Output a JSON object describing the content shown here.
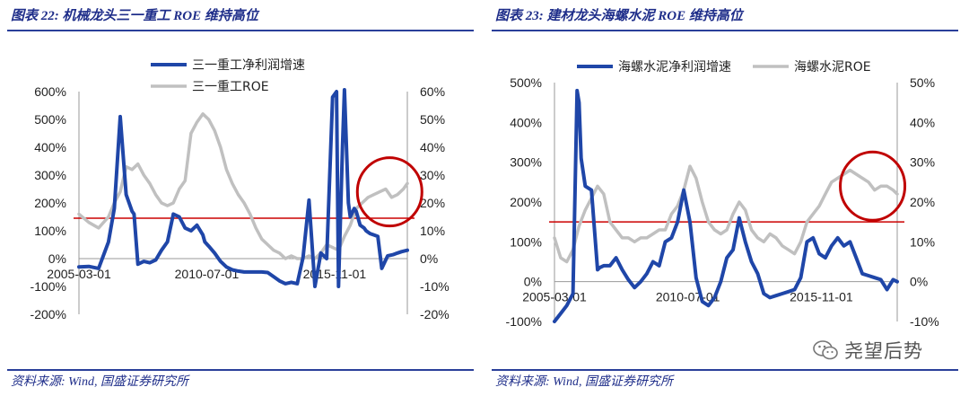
{
  "watermark": {
    "text": "尧望后势"
  },
  "chart_data": [
    {
      "caption": "图表 22: 机械龙头三一重工 ROE 维持高位",
      "source": "资料来源: Wind, 国盛证券研究所",
      "type": "line",
      "x_tick_labels": [
        "2005-03-01",
        "2010-07-01",
        "2015-11-01"
      ],
      "x_tick_positions": [
        0,
        65,
        130
      ],
      "x_range": [
        0,
        167
      ],
      "y_left": {
        "range": [
          -200,
          600
        ],
        "ticks": [
          -200,
          -100,
          0,
          100,
          200,
          300,
          400,
          500,
          600
        ],
        "labels": [
          "-200%",
          "-100%",
          "0%",
          "100%",
          "200%",
          "300%",
          "400%",
          "500%",
          "600%"
        ]
      },
      "y_right": {
        "range": [
          -20,
          60
        ],
        "ticks": [
          -20,
          -10,
          0,
          10,
          20,
          30,
          40,
          50,
          60
        ],
        "labels": [
          "-20%",
          "-10%",
          "0%",
          "10%",
          "20%",
          "30%",
          "40%",
          "50%",
          "60%"
        ]
      },
      "reference_line": {
        "axis": "left",
        "value": 145,
        "color": "#cc0000"
      },
      "highlight_circle": {
        "x": 158,
        "y_left": 240,
        "color": "#c00000"
      },
      "series": [
        {
          "name": "三一重工净利润增速",
          "axis": "left",
          "color": "#1f46a8",
          "x": [
            0,
            5,
            10,
            15,
            18,
            21,
            24,
            27,
            28,
            30,
            33,
            36,
            39,
            42,
            45,
            48,
            51,
            54,
            57,
            60,
            63,
            64,
            66,
            69,
            72,
            75,
            78,
            81,
            84,
            87,
            90,
            93,
            96,
            99,
            102,
            105,
            108,
            111,
            114,
            117,
            120,
            123,
            126,
            129,
            131,
            132,
            134,
            135,
            137,
            138,
            140,
            141,
            143,
            145,
            146,
            148,
            150,
            152,
            154,
            157,
            160,
            162,
            164,
            167
          ],
          "y": [
            -30,
            -28,
            -35,
            60,
            180,
            510,
            230,
            170,
            160,
            -20,
            -10,
            -15,
            -5,
            30,
            60,
            160,
            150,
            110,
            100,
            120,
            85,
            60,
            45,
            20,
            -10,
            -30,
            -40,
            -45,
            -48,
            -48,
            -48,
            -48,
            -50,
            -65,
            -80,
            -90,
            -85,
            -90,
            5,
            210,
            -100,
            20,
            0,
            580,
            600,
            -100,
            400,
            650,
            200,
            150,
            180,
            170,
            120,
            110,
            100,
            90,
            85,
            80,
            -35,
            10,
            15,
            20,
            25,
            30
          ]
        },
        {
          "name": "三一重工ROE",
          "axis": "right",
          "color": "#c0c0c0",
          "x": [
            0,
            5,
            10,
            15,
            18,
            21,
            24,
            27,
            30,
            33,
            36,
            39,
            42,
            45,
            48,
            51,
            54,
            57,
            60,
            63,
            66,
            69,
            72,
            75,
            78,
            81,
            84,
            87,
            90,
            93,
            96,
            99,
            102,
            105,
            108,
            111,
            114,
            117,
            120,
            123,
            126,
            129,
            132,
            135,
            138,
            141,
            144,
            147,
            150,
            153,
            156,
            159,
            162,
            165,
            167
          ],
          "y": [
            16,
            13,
            11,
            15,
            20,
            24,
            33,
            32,
            34,
            30,
            27,
            23,
            20,
            19,
            20,
            25,
            28,
            45,
            49,
            52,
            50,
            46,
            40,
            32,
            27,
            23,
            20,
            16,
            11,
            7,
            5,
            3,
            2,
            0,
            1,
            0,
            0,
            1,
            0,
            2,
            5,
            4,
            3,
            8,
            12,
            18,
            20,
            22,
            23,
            24,
            25,
            22,
            23,
            25,
            27
          ]
        }
      ]
    },
    {
      "caption": "图表 23: 建材龙头海螺水泥 ROE 维持高位",
      "source": "资料来源: Wind, 国盛证券研究所",
      "type": "line",
      "x_tick_labels": [
        "2005-03-01",
        "2010-07-01",
        "2015-11-01"
      ],
      "x_tick_positions": [
        0,
        65,
        130
      ],
      "x_range": [
        0,
        167
      ],
      "y_left": {
        "range": [
          -100,
          500
        ],
        "ticks": [
          -100,
          0,
          100,
          200,
          300,
          400,
          500
        ],
        "labels": [
          "-100%",
          "0%",
          "100%",
          "200%",
          "300%",
          "400%",
          "500%"
        ]
      },
      "y_right": {
        "range": [
          -10,
          50
        ],
        "ticks": [
          -10,
          0,
          10,
          20,
          30,
          40,
          50
        ],
        "labels": [
          "-10%",
          "0%",
          "10%",
          "20%",
          "30%",
          "40%",
          "50%"
        ]
      },
      "reference_line": {
        "axis": "left",
        "value": 150,
        "color": "#cc0000"
      },
      "highlight_circle": {
        "x": 155,
        "y_left": 240,
        "color": "#c00000"
      },
      "series": [
        {
          "name": "海螺水泥净利润增速",
          "axis": "left",
          "color": "#1f46a8",
          "x": [
            0,
            3,
            6,
            9,
            11,
            12,
            13,
            15,
            18,
            21,
            22,
            24,
            27,
            30,
            33,
            36,
            39,
            42,
            45,
            48,
            51,
            54,
            57,
            60,
            63,
            66,
            69,
            72,
            75,
            78,
            81,
            84,
            87,
            90,
            93,
            96,
            99,
            102,
            105,
            108,
            111,
            114,
            117,
            120,
            123,
            126,
            129,
            132,
            135,
            138,
            141,
            144,
            147,
            150,
            153,
            156,
            159,
            162,
            165,
            167
          ],
          "y": [
            -100,
            -80,
            -60,
            -30,
            480,
            450,
            310,
            240,
            230,
            30,
            35,
            40,
            40,
            60,
            30,
            5,
            -15,
            0,
            20,
            50,
            40,
            100,
            110,
            150,
            230,
            150,
            10,
            -50,
            -60,
            -40,
            0,
            60,
            80,
            160,
            100,
            50,
            20,
            -30,
            -40,
            -35,
            -30,
            -25,
            -20,
            10,
            100,
            110,
            70,
            60,
            90,
            110,
            90,
            100,
            60,
            20,
            15,
            10,
            5,
            -20,
            5,
            0
          ]
        },
        {
          "name": "海螺水泥ROE",
          "axis": "right",
          "color": "#c0c0c0",
          "x": [
            0,
            3,
            6,
            9,
            12,
            15,
            18,
            21,
            24,
            27,
            30,
            33,
            36,
            39,
            42,
            45,
            48,
            51,
            54,
            57,
            60,
            63,
            66,
            69,
            72,
            75,
            78,
            81,
            84,
            87,
            90,
            93,
            96,
            99,
            102,
            105,
            108,
            111,
            114,
            117,
            120,
            123,
            126,
            129,
            132,
            135,
            138,
            141,
            144,
            147,
            150,
            153,
            156,
            159,
            162,
            165,
            167
          ],
          "y": [
            11,
            6,
            5,
            8,
            14,
            18,
            21,
            24,
            22,
            15,
            13,
            11,
            11,
            10,
            11,
            11,
            12,
            13,
            13,
            17,
            19,
            23,
            29,
            26,
            20,
            15,
            13,
            12,
            13,
            17,
            20,
            18,
            13,
            11,
            10,
            12,
            11,
            9,
            8,
            7,
            10,
            15,
            17,
            19,
            22,
            25,
            26,
            27,
            28,
            27,
            26,
            25,
            23,
            24,
            24,
            23,
            22
          ]
        }
      ]
    }
  ]
}
